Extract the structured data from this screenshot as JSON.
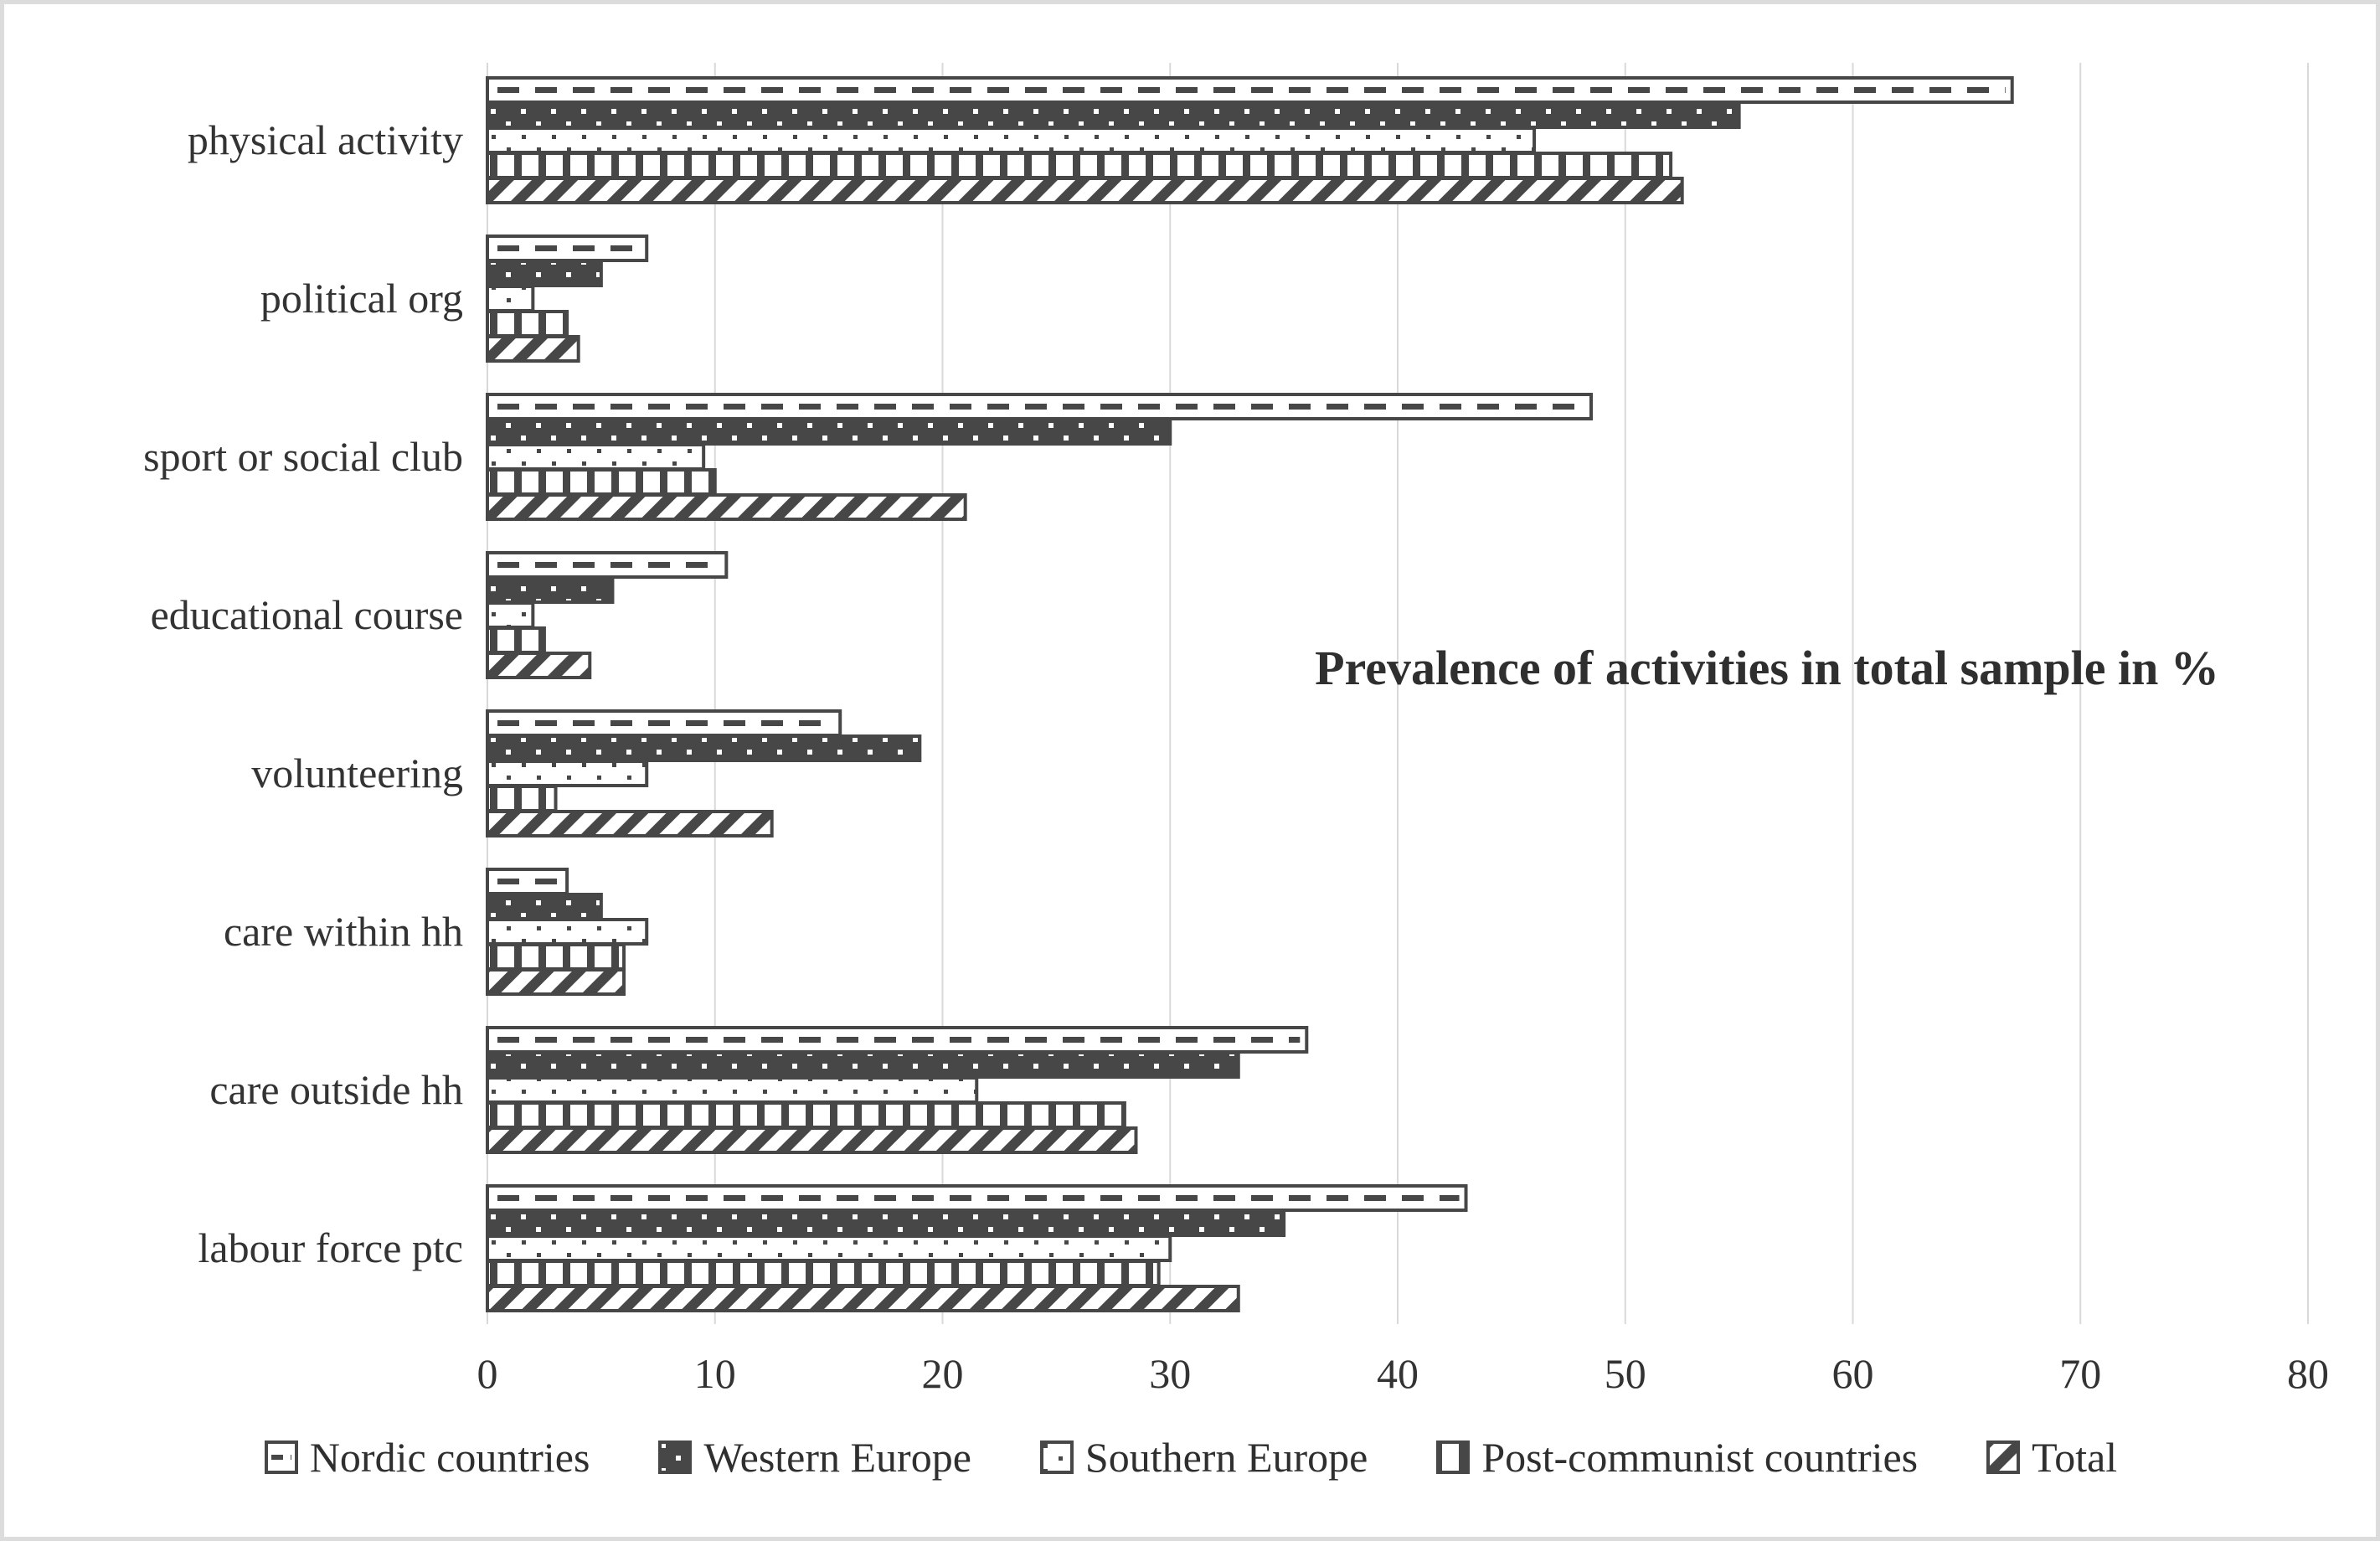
{
  "chart_data": {
    "type": "bar",
    "orientation": "horizontal",
    "title": "Prevalence of activities in total sample in %",
    "xlabel": "",
    "ylabel": "",
    "categories": [
      "physical activity",
      "political org",
      "sport or social club",
      "educational course",
      "volunteering",
      "care within hh",
      "care outside hh",
      "labour force ptc"
    ],
    "series": [
      {
        "name": "Nordic countries",
        "pattern": "dash",
        "values": [
          67,
          7,
          48.5,
          10.5,
          15.5,
          3.5,
          36,
          43
        ]
      },
      {
        "name": "Western Europe",
        "pattern": "dark-dots",
        "values": [
          55,
          5,
          30,
          5.5,
          19,
          5,
          33,
          35
        ]
      },
      {
        "name": "Southern Europe",
        "pattern": "light-dots",
        "values": [
          46,
          2,
          9.5,
          2,
          7,
          7,
          21.5,
          30
        ]
      },
      {
        "name": "Post-communist countries",
        "pattern": "vertical-lines",
        "values": [
          52,
          3.5,
          10,
          2.5,
          3,
          6,
          28,
          29.5
        ]
      },
      {
        "name": "Total",
        "pattern": "diagonal-stripes",
        "values": [
          52.5,
          4,
          21,
          4.5,
          12.5,
          6,
          28.5,
          33
        ]
      }
    ],
    "x_ticks": [
      0,
      10,
      20,
      30,
      40,
      50,
      60,
      70,
      80
    ],
    "xlim": [
      0,
      80
    ],
    "grid": true,
    "legend_position": "bottom",
    "colors": {
      "bar_dark": "#474747",
      "grid": "#d9d9d9",
      "text": "#333333",
      "background": "#ffffff",
      "frame": "#dcdcdc"
    }
  }
}
